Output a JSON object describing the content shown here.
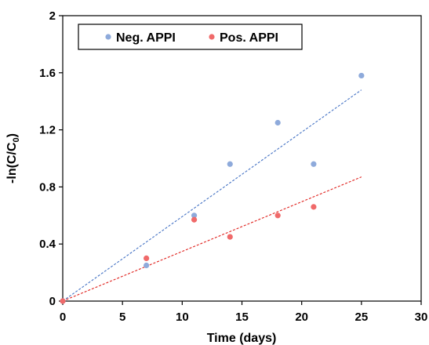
{
  "chart_data": {
    "type": "scatter",
    "xlabel": "Time (days)",
    "ylabel_main": "-ln(C/C",
    "ylabel_sub": "0",
    "ylabel_tail": ")",
    "xlim": [
      0,
      30
    ],
    "ylim": [
      0,
      2
    ],
    "xticks": [
      "0",
      "5",
      "10",
      "15",
      "20",
      "25",
      "30"
    ],
    "yticks": [
      "0",
      "0.4",
      "0.8",
      "1.2",
      "1.6",
      "2"
    ],
    "legend_position": "top-left",
    "grid": false,
    "series": [
      {
        "name": "Neg. APPI",
        "color": "#8eaadb",
        "trend_color": "#4472c4",
        "x": [
          0,
          7,
          11,
          14,
          18,
          21,
          25
        ],
        "y": [
          0,
          0.25,
          0.6,
          0.96,
          1.25,
          0.96,
          1.58
        ],
        "trend_end": [
          25,
          1.48
        ]
      },
      {
        "name": "Pos. APPI",
        "color": "#f06a6a",
        "trend_color": "#e0201c",
        "x": [
          0,
          7,
          11,
          14,
          18,
          21
        ],
        "y": [
          0,
          0.3,
          0.57,
          0.45,
          0.6,
          0.66
        ],
        "trend_end": [
          25,
          0.87
        ]
      }
    ]
  }
}
